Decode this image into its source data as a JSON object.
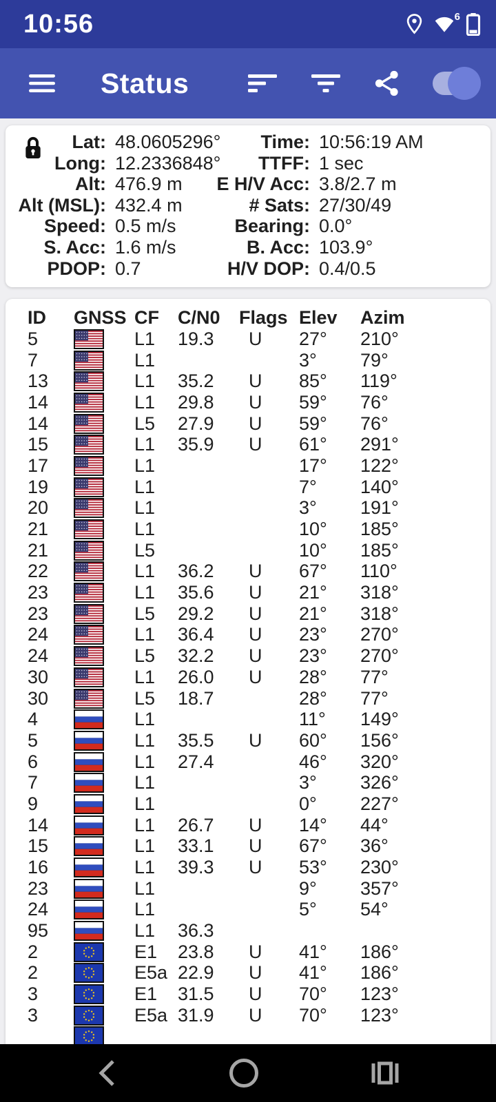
{
  "colors": {
    "status_bar_bg": "#2D3B9A",
    "app_bar_bg": "#4353B0",
    "page_bg": "#EFEFF2",
    "card_bg": "#FFFFFF",
    "text": "#1F1F1F",
    "nav_bg": "#000000",
    "nav_icon": "#A6A6A6",
    "toggle_track": "#A8B0E0",
    "toggle_thumb": "#6E7ED9",
    "flag_usa_canton": "#3B3A6D",
    "flag_usa_stripe": "#B22234",
    "flag_russia_blue": "#2F4DBE",
    "flag_russia_red": "#D32B1E",
    "flag_eu_blue": "#1C38AE",
    "flag_eu_star": "#F5C818"
  },
  "status_bar": {
    "time": "10:56",
    "wifi_generation": "6"
  },
  "app_bar": {
    "title": "Status",
    "toggle_on": true
  },
  "info_panel": {
    "rows": [
      {
        "label_left": "Lat:",
        "value_left": "48.0605296°",
        "label_right": "Time:",
        "value_right": "10:56:19 AM"
      },
      {
        "label_left": "Long:",
        "value_left": "12.2336848°",
        "label_right": "TTFF:",
        "value_right": "1 sec"
      },
      {
        "label_left": "Alt:",
        "value_left": "476.9 m",
        "label_right": "E H/V Acc:",
        "value_right": "3.8/2.7 m"
      },
      {
        "label_left": "Alt (MSL):",
        "value_left": "432.4 m",
        "label_right": "# Sats:",
        "value_right": "27/30/49"
      },
      {
        "label_left": "Speed:",
        "value_left": "0.5 m/s",
        "label_right": "Bearing:",
        "value_right": "0.0°"
      },
      {
        "label_left": "S. Acc:",
        "value_left": "1.6 m/s",
        "label_right": "B. Acc:",
        "value_right": "103.9°"
      },
      {
        "label_left": "PDOP:",
        "value_left": "0.7",
        "label_right": "H/V DOP:",
        "value_right": "0.4/0.5"
      }
    ]
  },
  "satellite_table": {
    "headers": [
      "ID",
      "GNSS",
      "CF",
      "C/N0",
      "Flags",
      "Elev",
      "Azim"
    ],
    "rows": [
      {
        "id": "5",
        "gnss": "usa",
        "cf": "L1",
        "cn0": "19.3",
        "flags": "U",
        "elev": "27°",
        "azim": "210°"
      },
      {
        "id": "7",
        "gnss": "usa",
        "cf": "L1",
        "cn0": "",
        "flags": "",
        "elev": "3°",
        "azim": "79°"
      },
      {
        "id": "13",
        "gnss": "usa",
        "cf": "L1",
        "cn0": "35.2",
        "flags": "U",
        "elev": "85°",
        "azim": "119°"
      },
      {
        "id": "14",
        "gnss": "usa",
        "cf": "L1",
        "cn0": "29.8",
        "flags": "U",
        "elev": "59°",
        "azim": "76°"
      },
      {
        "id": "14",
        "gnss": "usa",
        "cf": "L5",
        "cn0": "27.9",
        "flags": "U",
        "elev": "59°",
        "azim": "76°"
      },
      {
        "id": "15",
        "gnss": "usa",
        "cf": "L1",
        "cn0": "35.9",
        "flags": "U",
        "elev": "61°",
        "azim": "291°"
      },
      {
        "id": "17",
        "gnss": "usa",
        "cf": "L1",
        "cn0": "",
        "flags": "",
        "elev": "17°",
        "azim": "122°"
      },
      {
        "id": "19",
        "gnss": "usa",
        "cf": "L1",
        "cn0": "",
        "flags": "",
        "elev": "7°",
        "azim": "140°"
      },
      {
        "id": "20",
        "gnss": "usa",
        "cf": "L1",
        "cn0": "",
        "flags": "",
        "elev": "3°",
        "azim": "191°"
      },
      {
        "id": "21",
        "gnss": "usa",
        "cf": "L1",
        "cn0": "",
        "flags": "",
        "elev": "10°",
        "azim": "185°"
      },
      {
        "id": "21",
        "gnss": "usa",
        "cf": "L5",
        "cn0": "",
        "flags": "",
        "elev": "10°",
        "azim": "185°"
      },
      {
        "id": "22",
        "gnss": "usa",
        "cf": "L1",
        "cn0": "36.2",
        "flags": "U",
        "elev": "67°",
        "azim": "110°"
      },
      {
        "id": "23",
        "gnss": "usa",
        "cf": "L1",
        "cn0": "35.6",
        "flags": "U",
        "elev": "21°",
        "azim": "318°"
      },
      {
        "id": "23",
        "gnss": "usa",
        "cf": "L5",
        "cn0": "29.2",
        "flags": "U",
        "elev": "21°",
        "azim": "318°"
      },
      {
        "id": "24",
        "gnss": "usa",
        "cf": "L1",
        "cn0": "36.4",
        "flags": "U",
        "elev": "23°",
        "azim": "270°"
      },
      {
        "id": "24",
        "gnss": "usa",
        "cf": "L5",
        "cn0": "32.2",
        "flags": "U",
        "elev": "23°",
        "azim": "270°"
      },
      {
        "id": "30",
        "gnss": "usa",
        "cf": "L1",
        "cn0": "26.0",
        "flags": "U",
        "elev": "28°",
        "azim": "77°"
      },
      {
        "id": "30",
        "gnss": "usa",
        "cf": "L5",
        "cn0": "18.7",
        "flags": "",
        "elev": "28°",
        "azim": "77°"
      },
      {
        "id": "4",
        "gnss": "russia",
        "cf": "L1",
        "cn0": "",
        "flags": "",
        "elev": "11°",
        "azim": "149°"
      },
      {
        "id": "5",
        "gnss": "russia",
        "cf": "L1",
        "cn0": "35.5",
        "flags": "U",
        "elev": "60°",
        "azim": "156°"
      },
      {
        "id": "6",
        "gnss": "russia",
        "cf": "L1",
        "cn0": "27.4",
        "flags": "",
        "elev": "46°",
        "azim": "320°"
      },
      {
        "id": "7",
        "gnss": "russia",
        "cf": "L1",
        "cn0": "",
        "flags": "",
        "elev": "3°",
        "azim": "326°"
      },
      {
        "id": "9",
        "gnss": "russia",
        "cf": "L1",
        "cn0": "",
        "flags": "",
        "elev": "0°",
        "azim": "227°"
      },
      {
        "id": "14",
        "gnss": "russia",
        "cf": "L1",
        "cn0": "26.7",
        "flags": "U",
        "elev": "14°",
        "azim": "44°"
      },
      {
        "id": "15",
        "gnss": "russia",
        "cf": "L1",
        "cn0": "33.1",
        "flags": "U",
        "elev": "67°",
        "azim": "36°"
      },
      {
        "id": "16",
        "gnss": "russia",
        "cf": "L1",
        "cn0": "39.3",
        "flags": "U",
        "elev": "53°",
        "azim": "230°"
      },
      {
        "id": "23",
        "gnss": "russia",
        "cf": "L1",
        "cn0": "",
        "flags": "",
        "elev": "9°",
        "azim": "357°"
      },
      {
        "id": "24",
        "gnss": "russia",
        "cf": "L1",
        "cn0": "",
        "flags": "",
        "elev": "5°",
        "azim": "54°"
      },
      {
        "id": "95",
        "gnss": "russia",
        "cf": "L1",
        "cn0": "36.3",
        "flags": "",
        "elev": "",
        "azim": ""
      },
      {
        "id": "2",
        "gnss": "galileo",
        "cf": "E1",
        "cn0": "23.8",
        "flags": "U",
        "elev": "41°",
        "azim": "186°"
      },
      {
        "id": "2",
        "gnss": "galileo",
        "cf": "E5a",
        "cn0": "22.9",
        "flags": "U",
        "elev": "41°",
        "azim": "186°"
      },
      {
        "id": "3",
        "gnss": "galileo",
        "cf": "E1",
        "cn0": "31.5",
        "flags": "U",
        "elev": "70°",
        "azim": "123°"
      },
      {
        "id": "3",
        "gnss": "galileo",
        "cf": "E5a",
        "cn0": "31.9",
        "flags": "U",
        "elev": "70°",
        "azim": "123°"
      },
      {
        "id": "",
        "gnss": "galileo",
        "cf": "",
        "cn0": "",
        "flags": "",
        "elev": "",
        "azim": "",
        "partial": true
      }
    ]
  }
}
